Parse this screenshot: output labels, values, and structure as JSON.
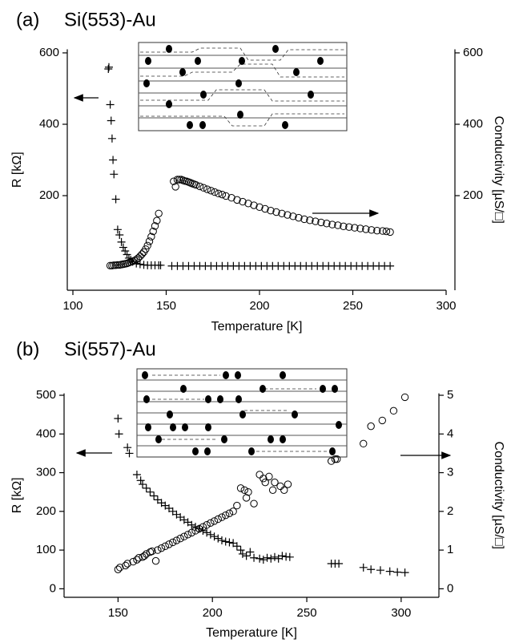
{
  "chart_data": [
    {
      "type": "scatter",
      "panel": "(a)",
      "title": "Si(553)-Au",
      "x_label": "Temperature [K]",
      "y_label": "R  [kΩ]",
      "y2_label": "Conductivity [µS/□]",
      "xlim": [
        100,
        300
      ],
      "xticks": [
        100,
        150,
        200,
        250,
        300
      ],
      "ylim": [
        -65,
        610
      ],
      "yticks": [
        200,
        400,
        600
      ],
      "y2lim": [
        -65,
        610
      ],
      "y2ticks": [
        200,
        400,
        600
      ],
      "series": [
        {
          "marker": "plus",
          "color": "#000000",
          "axis": "y",
          "x": [
            119,
            119.3,
            120,
            120.5,
            121,
            121.5,
            122,
            123,
            124,
            125,
            126,
            127,
            128,
            129,
            130,
            131,
            132,
            134,
            136,
            138,
            140,
            142,
            144,
            146,
            147,
            153,
            156,
            159,
            162,
            165,
            168,
            171,
            174,
            177,
            180,
            183,
            186,
            189,
            192,
            195,
            198,
            201,
            204,
            207,
            210,
            213,
            216,
            219,
            222,
            225,
            228,
            231,
            234,
            237,
            240,
            243,
            246,
            249,
            252,
            255,
            258,
            261,
            264,
            267,
            270
          ],
          "values": [
            555,
            560,
            455,
            410,
            360,
            300,
            260,
            190,
            105,
            90,
            70,
            55,
            45,
            35,
            25,
            20,
            15,
            10,
            8,
            6,
            5,
            5,
            5,
            5,
            5,
            3,
            3,
            3,
            3,
            3,
            3,
            3,
            3,
            3,
            3,
            3,
            3,
            3,
            3,
            3,
            3,
            3,
            3,
            3,
            3,
            3,
            3,
            3,
            3,
            3,
            3,
            3,
            3,
            3,
            3,
            3,
            3,
            3,
            3,
            3,
            3,
            3,
            3,
            3,
            3
          ]
        },
        {
          "marker": "circle",
          "color": "#000000",
          "axis": "y2",
          "x": [
            120,
            121,
            122,
            123,
            124,
            125,
            126,
            127,
            128,
            129,
            130,
            131,
            132,
            133,
            134,
            135,
            136,
            137,
            138,
            139,
            140,
            141,
            142,
            143,
            144,
            145,
            146,
            154,
            155,
            156,
            157,
            158,
            159,
            160,
            161,
            162,
            163,
            164,
            165,
            166,
            168,
            170,
            172,
            174,
            176,
            178,
            180,
            182,
            185,
            188,
            191,
            194,
            197,
            200,
            203,
            206,
            209,
            212,
            215,
            218,
            221,
            224,
            227,
            230,
            233,
            236,
            239,
            242,
            245,
            248,
            251,
            254,
            257,
            260,
            263,
            266,
            268,
            270
          ],
          "values": [
            4,
            4,
            5,
            5,
            6,
            6,
            7,
            8,
            9,
            10,
            12,
            14,
            16,
            18,
            21,
            25,
            30,
            36,
            42,
            50,
            60,
            72,
            85,
            100,
            115,
            130,
            150,
            240,
            225,
            245,
            245,
            245,
            243,
            241,
            240,
            238,
            236,
            234,
            232,
            230,
            226,
            222,
            218,
            214,
            210,
            206,
            203,
            199,
            194,
            188,
            183,
            178,
            173,
            168,
            163,
            158,
            154,
            150,
            146,
            142,
            138,
            134,
            131,
            128,
            125,
            122,
            119,
            117,
            114,
            112,
            110,
            108,
            106,
            104,
            102,
            101,
            100,
            98
          ]
        }
      ]
    },
    {
      "type": "scatter",
      "panel": "(b)",
      "title": "Si(557)-Au",
      "x_label": "Temperature [K]",
      "y_label": "R [kΩ]",
      "y2_label": "Conductivity [µS/□]",
      "xlim": [
        126.5,
        320
      ],
      "xticks": [
        150,
        200,
        250,
        300
      ],
      "ylim": [
        -22,
        505
      ],
      "yticks": [
        0,
        100,
        200,
        300,
        400,
        500
      ],
      "y2lim": [
        -0.22,
        5.05
      ],
      "y2ticks": [
        0,
        1,
        2,
        3,
        4,
        5
      ],
      "series": [
        {
          "marker": "plus",
          "color": "#000000",
          "axis": "y",
          "x": [
            150,
            150.5,
            155,
            156,
            160,
            162,
            163,
            165,
            167,
            169,
            171,
            173,
            175,
            177,
            179,
            181,
            183,
            185,
            187,
            189,
            191,
            193,
            195,
            197,
            199,
            201,
            203,
            205,
            207,
            209,
            211,
            213,
            215,
            216,
            218,
            220,
            222,
            225,
            227,
            229,
            231,
            233,
            235,
            237,
            239,
            241,
            263,
            265,
            267,
            280,
            284,
            289,
            294,
            298,
            302
          ],
          "values": [
            440,
            400,
            365,
            350,
            295,
            280,
            270,
            260,
            250,
            240,
            230,
            222,
            215,
            208,
            200,
            192,
            185,
            178,
            172,
            165,
            160,
            155,
            150,
            145,
            140,
            135,
            130,
            125,
            122,
            120,
            118,
            110,
            100,
            90,
            85,
            95,
            80,
            78,
            75,
            80,
            78,
            82,
            78,
            85,
            83,
            82,
            65,
            65,
            65,
            55,
            50,
            48,
            45,
            43,
            42
          ]
        },
        {
          "marker": "circle",
          "color": "#000000",
          "axis": "y2",
          "x": [
            150,
            151,
            154,
            155,
            158,
            160,
            161,
            163,
            164,
            165,
            167,
            168,
            170,
            171,
            173,
            175,
            177,
            179,
            181,
            183,
            185,
            187,
            189,
            191,
            193,
            195,
            197,
            199,
            201,
            203,
            205,
            207,
            209,
            211,
            213,
            215,
            217,
            218,
            219,
            222,
            225,
            227,
            228,
            230,
            232,
            233,
            236,
            238,
            240,
            263,
            265,
            266,
            280,
            284,
            290,
            296,
            302
          ],
          "values": [
            0.5,
            0.55,
            0.6,
            0.65,
            0.7,
            0.75,
            0.8,
            0.82,
            0.85,
            0.9,
            0.95,
            0.97,
            0.72,
            1.0,
            1.05,
            1.1,
            1.15,
            1.2,
            1.25,
            1.3,
            1.35,
            1.4,
            1.45,
            1.5,
            1.55,
            1.6,
            1.65,
            1.7,
            1.75,
            1.8,
            1.85,
            1.9,
            1.95,
            2.0,
            2.15,
            2.6,
            2.55,
            2.35,
            2.5,
            2.2,
            2.95,
            2.85,
            2.75,
            2.9,
            2.55,
            2.75,
            2.65,
            2.55,
            2.7,
            3.3,
            3.35,
            3.35,
            3.75,
            4.2,
            4.35,
            4.6,
            4.95
          ]
        }
      ]
    }
  ]
}
